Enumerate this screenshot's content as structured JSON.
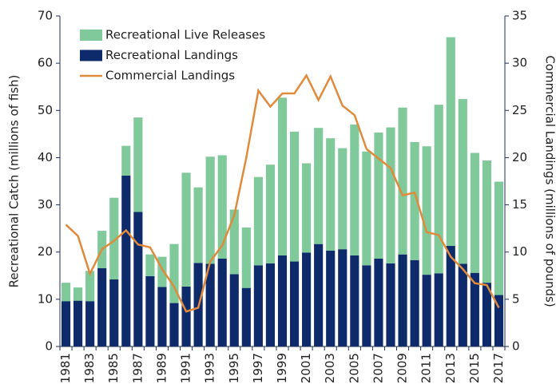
{
  "chart_data": {
    "type": "bar",
    "ylabel": "Recreational Catch (millions of fish)",
    "y2label": "Commercial Landings (millions of pounds)",
    "categories": [
      "1981",
      null,
      "1983",
      null,
      "1985",
      null,
      "1987",
      null,
      "1989",
      null,
      "1991",
      null,
      "1993",
      null,
      "1995",
      null,
      "1997",
      null,
      "1999",
      null,
      "2001",
      null,
      "2003",
      null,
      "2005",
      null,
      "2007",
      null,
      "2009",
      null,
      "2011",
      null,
      "2013",
      null,
      "2015",
      null,
      "2017"
    ],
    "series": [
      {
        "name": "Recreational Live Releases",
        "type": "bar",
        "color": "#7fc99a",
        "values": [
          3.9,
          2.8,
          6.4,
          7.9,
          17.3,
          6.3,
          20,
          4.6,
          6.4,
          12.5,
          24.1,
          16,
          22.7,
          21.9,
          13.7,
          12.8,
          18.7,
          20.9,
          33.4,
          27.5,
          18.9,
          24.6,
          23.8,
          21.4,
          27.7,
          24.1,
          26.7,
          28.8,
          31.1,
          25,
          27.2,
          35.7,
          44.2,
          34.9,
          25.4,
          25.9,
          24
        ]
      },
      {
        "name": "Recreational Landings",
        "type": "bar",
        "color": "#0d2a6b",
        "values": [
          9.6,
          9.7,
          9.6,
          16.6,
          14.2,
          36.2,
          28.5,
          14.9,
          12.6,
          9.2,
          12.7,
          17.7,
          17.5,
          18.6,
          15.3,
          12.4,
          17.2,
          17.6,
          19.3,
          18,
          19.9,
          21.7,
          20.3,
          20.6,
          19.3,
          17.2,
          18.6,
          17.6,
          19.5,
          18.3,
          15.2,
          15.5,
          21.3,
          17.5,
          15.6,
          13.5,
          10.9
        ]
      },
      {
        "name": "Commercial Landings",
        "type": "line",
        "axis": "y2",
        "color": "#e08a3c",
        "values": [
          12.9,
          11.7,
          7.7,
          10.3,
          11.2,
          12.3,
          10.8,
          10.5,
          8.2,
          6.3,
          3.7,
          4.1,
          9.0,
          10.7,
          13.9,
          20,
          27.1,
          25.4,
          26.8,
          26.8,
          28.7,
          26.1,
          28.6,
          25.5,
          24.5,
          20.9,
          19.9,
          18.9,
          16,
          16.3,
          12.1,
          11.8,
          9.5,
          8.2,
          6.7,
          6.5,
          4.1
        ]
      }
    ],
    "ylim": [
      0,
      70
    ],
    "yticks": [
      0,
      10,
      20,
      30,
      40,
      50,
      60,
      70
    ],
    "y2lim": [
      0,
      35
    ],
    "y2ticks": [
      0,
      5,
      10,
      15,
      20,
      25,
      30,
      35
    ],
    "legend": "upper left",
    "grid": false
  }
}
